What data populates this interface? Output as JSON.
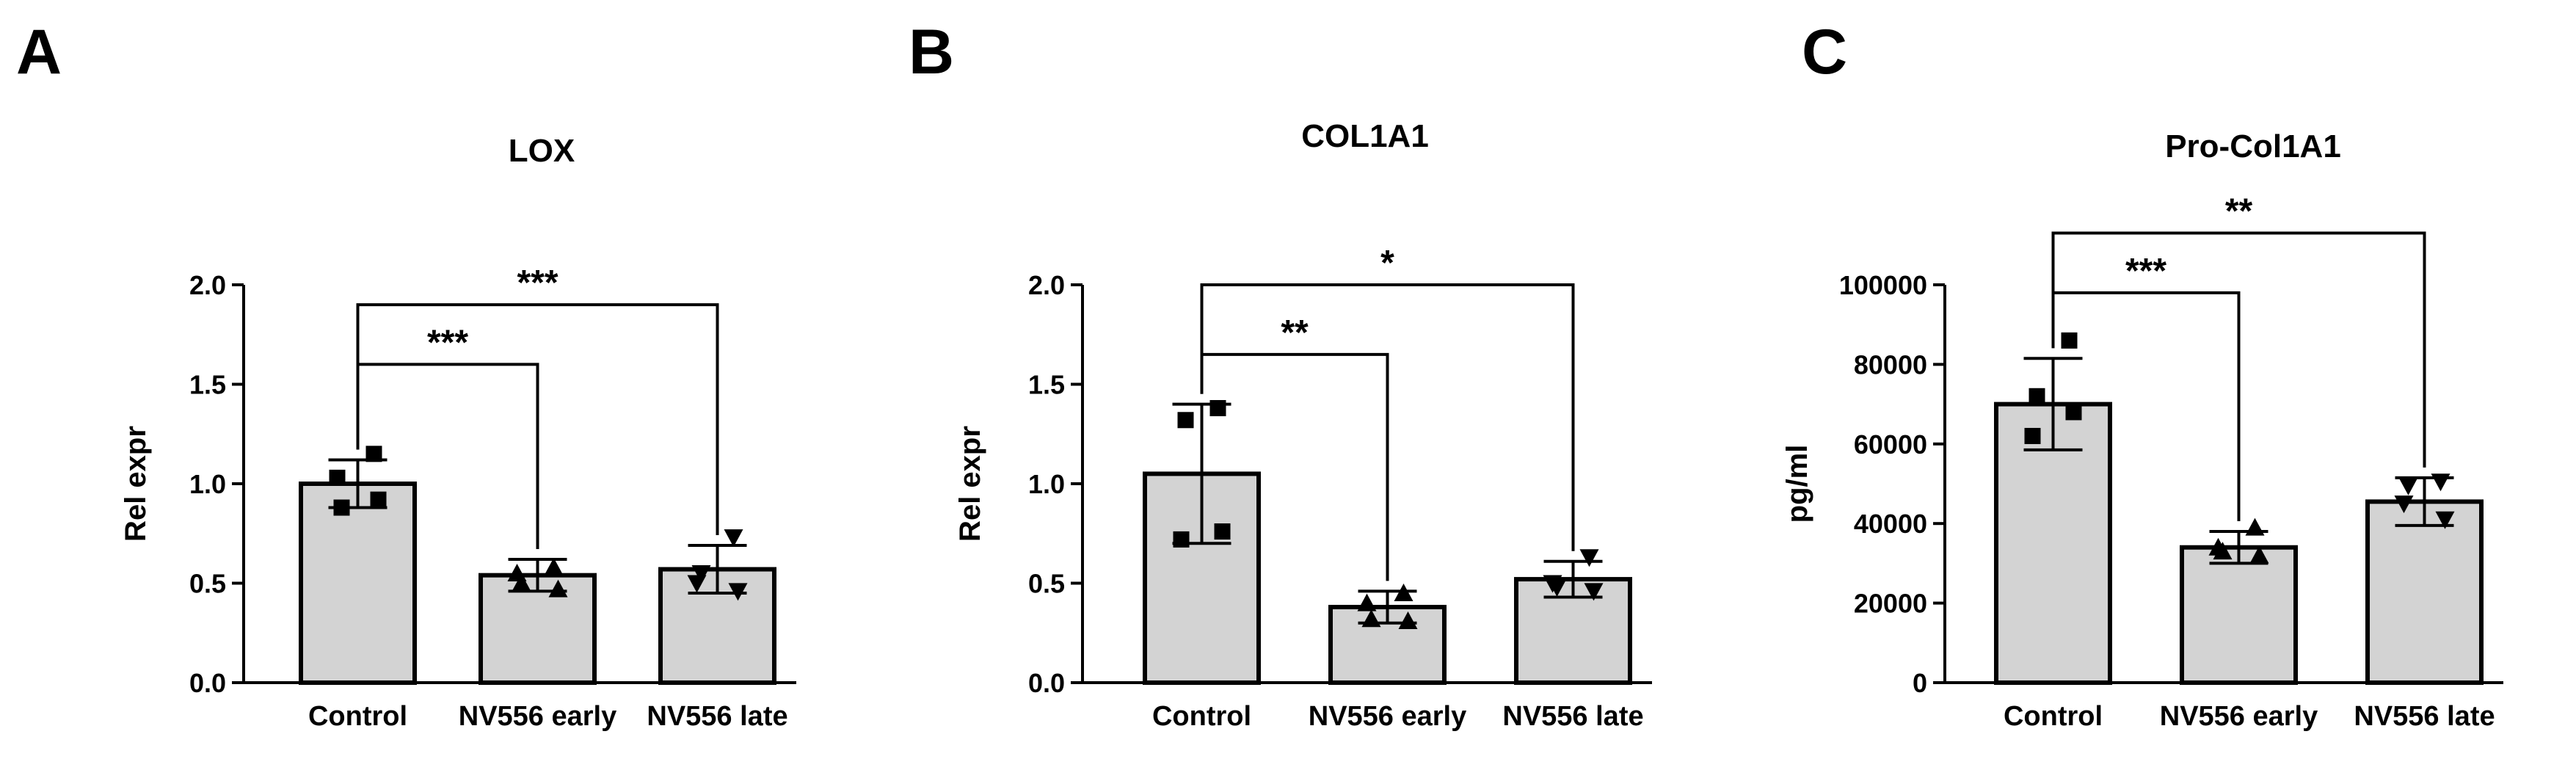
{
  "chart_data": [
    {
      "panel": "A",
      "type": "bar",
      "title": "LOX",
      "xlabel": "",
      "ylabel": "Rel expr",
      "categories": [
        "Control",
        "NV556 early",
        "NV556 late"
      ],
      "values": [
        1.0,
        0.54,
        0.57
      ],
      "errors": [
        0.12,
        0.08,
        0.12
      ],
      "point_shapes": [
        "square",
        "triangle-up",
        "triangle-down"
      ],
      "points": [
        [
          1.15,
          0.88,
          0.92,
          1.03
        ],
        [
          0.58,
          0.5,
          0.47,
          0.55
        ],
        [
          0.73,
          0.55,
          0.46,
          0.5
        ]
      ],
      "ylim": [
        0,
        2.0
      ],
      "yticks": [
        "0.0",
        "0.5",
        "1.0",
        "1.5",
        "2.0"
      ],
      "yticks_values": [
        0,
        0.5,
        1.0,
        1.5,
        2.0
      ],
      "comparisons": [
        {
          "from": 0,
          "to": 1,
          "level": 1.6,
          "label": "***"
        },
        {
          "from": 0,
          "to": 2,
          "level": 1.9,
          "label": "***"
        }
      ],
      "bar_color": "#d3d3d3",
      "grid": false
    },
    {
      "panel": "B",
      "type": "bar",
      "title": "COL1A1",
      "xlabel": "",
      "ylabel": "Rel expr",
      "categories": [
        "Control",
        "NV556 early",
        "NV556 late"
      ],
      "values": [
        1.05,
        0.38,
        0.52
      ],
      "errors": [
        0.35,
        0.08,
        0.09
      ],
      "point_shapes": [
        "square",
        "triangle-up",
        "triangle-down"
      ],
      "points": [
        [
          1.38,
          1.32,
          0.76,
          0.72
        ],
        [
          0.45,
          0.32,
          0.31,
          0.4
        ],
        [
          0.63,
          0.48,
          0.46,
          0.5
        ]
      ],
      "ylim": [
        0,
        2.0
      ],
      "yticks": [
        "0.0",
        "0.5",
        "1.0",
        "1.5",
        "2.0"
      ],
      "yticks_values": [
        0,
        0.5,
        1.0,
        1.5,
        2.0
      ],
      "comparisons": [
        {
          "from": 0,
          "to": 1,
          "level": 1.65,
          "label": "**"
        },
        {
          "from": 0,
          "to": 2,
          "level": 2.0,
          "label": "*"
        }
      ],
      "bar_color": "#d3d3d3",
      "grid": false
    },
    {
      "panel": "C",
      "type": "bar",
      "title": "Pro-Col1A1",
      "xlabel": "",
      "ylabel": "pg/ml",
      "categories": [
        "Control",
        "NV556 early",
        "NV556 late"
      ],
      "values": [
        70000,
        34000,
        45500
      ],
      "errors": [
        11500,
        4000,
        6000
      ],
      "point_shapes": [
        "square",
        "triangle-up",
        "triangle-down"
      ],
      "points": [
        [
          86000,
          72000,
          68000,
          62000
        ],
        [
          39000,
          33000,
          32000,
          34000
        ],
        [
          50500,
          49500,
          41000,
          45000
        ]
      ],
      "ylim": [
        0,
        100000
      ],
      "yticks": [
        "0",
        "20000",
        "40000",
        "60000",
        "80000",
        "100000"
      ],
      "yticks_values": [
        0,
        20000,
        40000,
        60000,
        80000,
        100000
      ],
      "comparisons": [
        {
          "from": 0,
          "to": 1,
          "level": 98000,
          "label": "***"
        },
        {
          "from": 0,
          "to": 2,
          "level": 113000,
          "label": "**"
        }
      ],
      "bar_color": "#d3d3d3",
      "grid": false
    }
  ]
}
